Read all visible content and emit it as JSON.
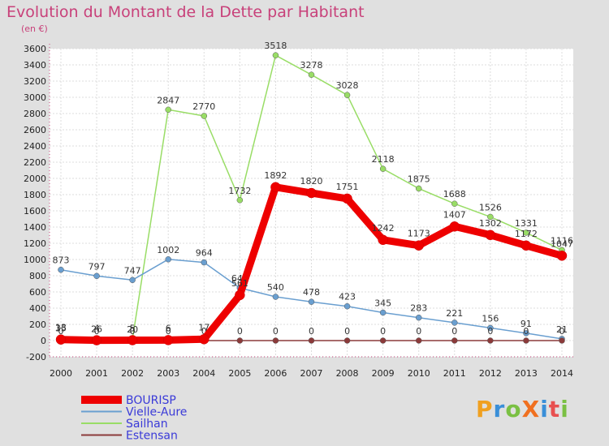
{
  "title": "Evolution du Montant de la Dette par Habitant",
  "subtitle": "(en €)",
  "logo": "ProXiti",
  "chart_data": {
    "type": "line",
    "title": "Evolution du Montant de la Dette par Habitant",
    "subtitle": "(en €)",
    "xlabel": "",
    "ylabel": "",
    "ylim": [
      -200,
      3600
    ],
    "ytick_step": 200,
    "grid": true,
    "legend_position": "bottom-left",
    "x": [
      2000,
      2001,
      2002,
      2003,
      2004,
      2005,
      2006,
      2007,
      2008,
      2009,
      2010,
      2011,
      2012,
      2013,
      2014
    ],
    "series": [
      {
        "name": "BOURISP",
        "color": "#ee0000",
        "values": [
          13,
          4,
          5,
          6,
          17,
          561,
          1892,
          1820,
          1751,
          1242,
          1173,
          1407,
          1302,
          1172,
          1047
        ],
        "labels": [
          "13",
          "4",
          "5",
          "6",
          "17",
          "561",
          "1892",
          "1820",
          "1751",
          "1242",
          "1173",
          "1407",
          "1302",
          "1172",
          "1047"
        ]
      },
      {
        "name": "Vielle-Aure",
        "color": "#6a9fd0",
        "values": [
          873,
          797,
          747,
          1002,
          964,
          649,
          540,
          478,
          423,
          345,
          283,
          221,
          156,
          91,
          21
        ],
        "labels": [
          "873",
          "797",
          "747",
          "1002",
          "964",
          "649",
          "540",
          "478",
          "423",
          "345",
          "283",
          "221",
          "156",
          "91",
          "21"
        ]
      },
      {
        "name": "Sailhan",
        "color": "#99dd66",
        "values": [
          35,
          26,
          20,
          2847,
          2770,
          1732,
          3518,
          3278,
          3028,
          2118,
          1875,
          1688,
          1526,
          1331,
          1116
        ],
        "labels": [
          "35",
          "26",
          "20",
          "2847",
          "2770",
          "1732",
          "3518",
          "3278",
          "3028",
          "2118",
          "1875",
          "1688",
          "1526",
          "1331",
          "1116"
        ]
      },
      {
        "name": "Estensan",
        "color": "#8b3a3a",
        "values": [
          0,
          0,
          0,
          0,
          0,
          0,
          0,
          0,
          0,
          0,
          0,
          0,
          0,
          0,
          0
        ],
        "labels": [
          "0",
          "0",
          "0",
          "0",
          "0",
          "0",
          "0",
          "0",
          "0",
          "0",
          "0",
          "0",
          "0",
          "0",
          "0"
        ]
      }
    ]
  }
}
